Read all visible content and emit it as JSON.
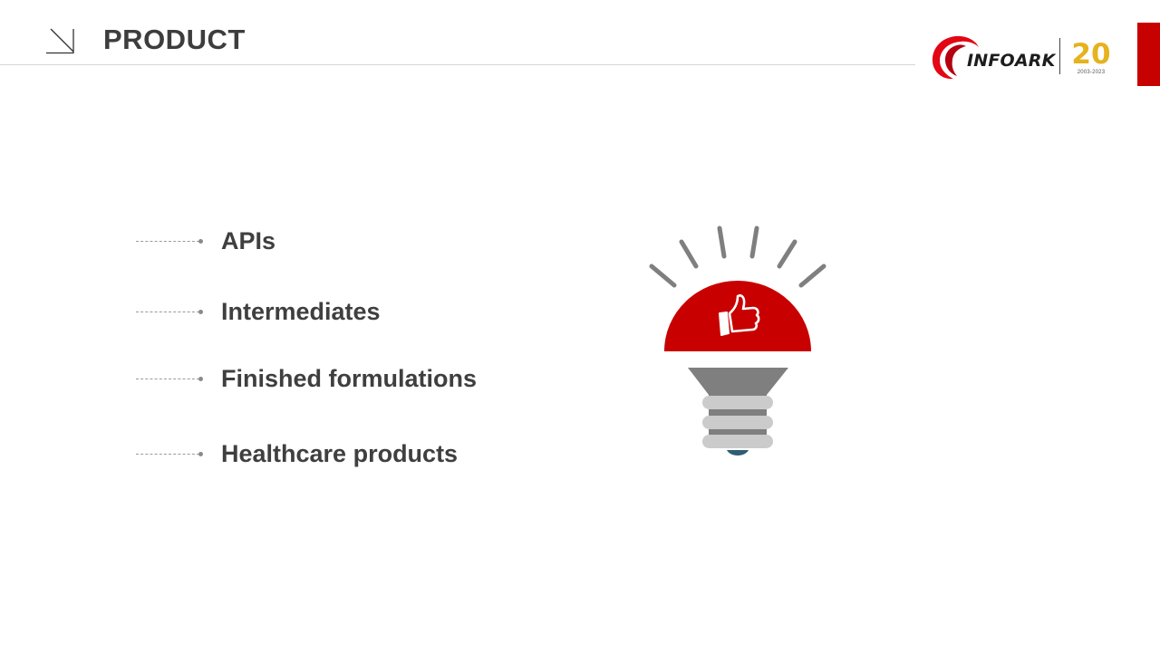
{
  "header": {
    "title": "PRODUCT"
  },
  "logo": {
    "brand_text": "INFOARK",
    "anniversary_number": "20",
    "anniversary_years": "2003-2023"
  },
  "product_list": [
    {
      "label": "APIs"
    },
    {
      "label": "Intermediates"
    },
    {
      "label": "Finished formulations"
    },
    {
      "label": "Healthcare products"
    }
  ],
  "colors": {
    "accent_red": "#c70000",
    "bulb_red": "#c80000",
    "ray_gray": "#7f7f7f",
    "socket_gray": "#7f7f7f",
    "thread_gray": "#cbcbcb",
    "anniversary_gold": "#e6b21e"
  },
  "icons": {
    "header": "arrow-down-right-icon",
    "illustration": "light-bulb-icon",
    "bulb_symbol": "thumbs-up-icon"
  }
}
